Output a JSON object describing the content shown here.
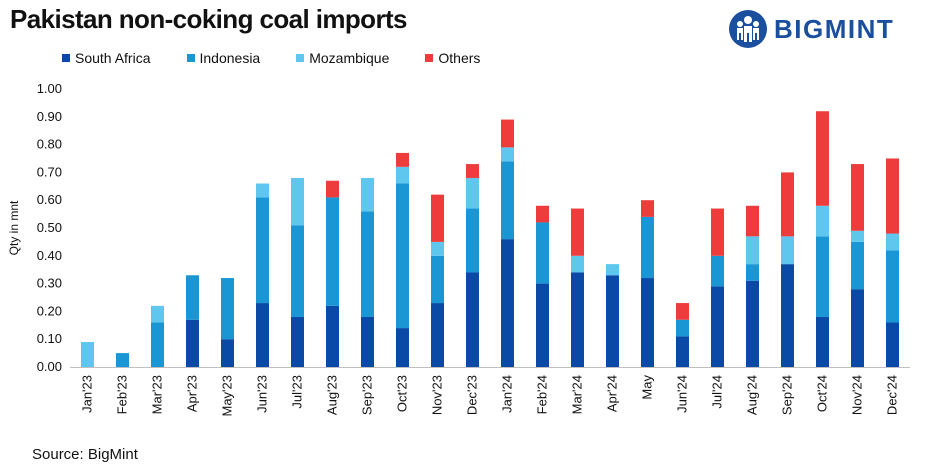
{
  "title": "Pakistan non-coking coal imports",
  "logo": {
    "text": "BIGMINT"
  },
  "source": "Source: BigMint",
  "colors": {
    "south_africa": "#0a4aa6",
    "indonesia": "#1a96d4",
    "mozambique": "#5fc6ee",
    "others": "#ee3b3b"
  },
  "chart_data": {
    "type": "bar",
    "stacked": true,
    "title": "Pakistan non-coking coal imports",
    "xlabel": "",
    "ylabel": "Qty in mnt",
    "ylim": [
      0,
      1.0
    ],
    "y_ticks": [
      "0.00",
      "0.10",
      "0.20",
      "0.30",
      "0.40",
      "0.50",
      "0.60",
      "0.70",
      "0.80",
      "0.90",
      "1.00"
    ],
    "legend_position": "top-left",
    "categories": [
      "Jan'23",
      "Feb'23",
      "Mar'23",
      "Apr'23",
      "May'23",
      "Jun'23",
      "Jul'23",
      "Aug'23",
      "Sep'23",
      "Oct'23",
      "Nov'23",
      "Dec'23",
      "Jan'24",
      "Feb'24",
      "Mar'24",
      "Apr'24",
      "May",
      "Jun'24",
      "Jul'24",
      "Aug'24",
      "Sep'24",
      "Oct'24",
      "Nov'24",
      "Dec'24"
    ],
    "series": [
      {
        "name": "South Africa",
        "color_key": "south_africa",
        "values": [
          0,
          0,
          0,
          0.17,
          0.1,
          0.23,
          0.18,
          0.22,
          0.18,
          0.14,
          0.23,
          0.34,
          0.46,
          0.3,
          0.34,
          0.33,
          0.32,
          0.11,
          0.29,
          0.31,
          0.37,
          0.18,
          0.28,
          0.16
        ]
      },
      {
        "name": "Indonesia",
        "color_key": "indonesia",
        "values": [
          0,
          0.05,
          0.16,
          0.16,
          0.22,
          0.38,
          0.33,
          0.39,
          0.38,
          0.52,
          0.17,
          0.23,
          0.28,
          0.22,
          0,
          0,
          0.22,
          0.06,
          0.11,
          0.06,
          0,
          0.29,
          0.17,
          0.26
        ]
      },
      {
        "name": "Mozambique",
        "color_key": "mozambique",
        "values": [
          0.09,
          0,
          0.06,
          0,
          0,
          0.05,
          0.17,
          0,
          0.12,
          0.06,
          0.05,
          0.11,
          0.05,
          0,
          0.06,
          0.04,
          0,
          0,
          0,
          0.1,
          0.1,
          0.11,
          0.04,
          0.06
        ]
      },
      {
        "name": "Others",
        "color_key": "others",
        "values": [
          0,
          0,
          0,
          0,
          0,
          0,
          0,
          0.06,
          0,
          0.05,
          0.17,
          0.05,
          0.1,
          0.06,
          0.17,
          0,
          0.06,
          0.06,
          0.17,
          0.11,
          0.23,
          0.34,
          0.24,
          0.27
        ]
      }
    ]
  }
}
